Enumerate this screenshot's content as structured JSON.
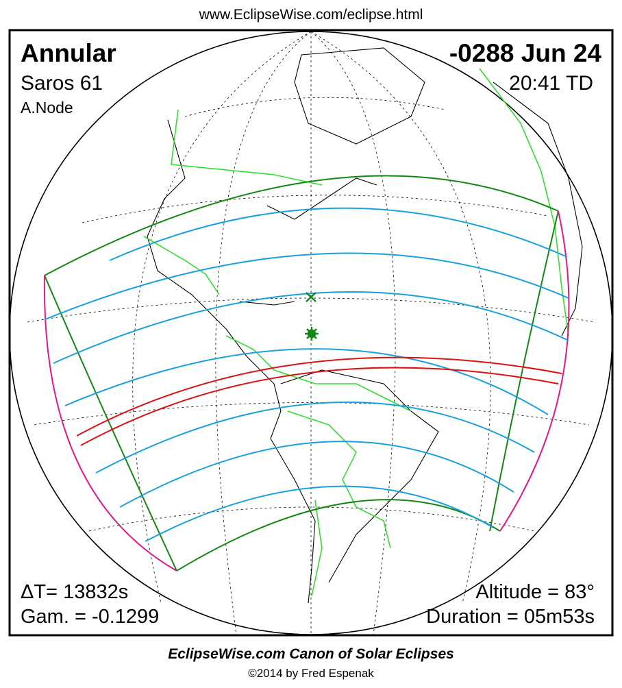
{
  "header": {
    "url": "www.EclipseWise.com/eclipse.html"
  },
  "panel": {
    "type": "Annular",
    "saros": "Saros  61",
    "node": "A.Node",
    "date": "-0288 Jun 24",
    "time": "20:41 TD",
    "delta_t": "ΔT=  13832s",
    "gamma": "Gam. = -0.1299",
    "altitude": "Altitude = 83°",
    "duration": "Duration = 05m53s"
  },
  "footer": {
    "title": "EclipseWise.com Canon of Solar Eclipses",
    "credit": "©2014 by Fred Espenak"
  }
}
